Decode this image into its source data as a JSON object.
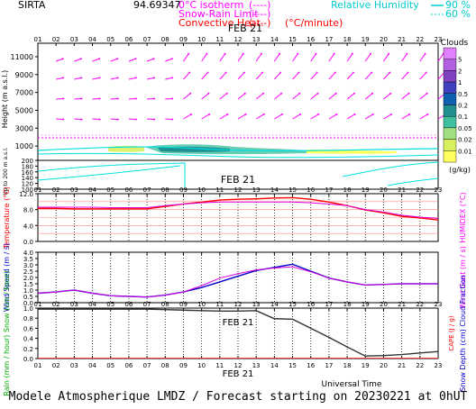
{
  "header": {
    "station": "SIRTA",
    "coords": "94.69347",
    "legend_items": [
      {
        "label": "0°C isotherm",
        "sample": "(----)",
        "color": "#ff00ff"
      },
      {
        "label": "Snow-Rain Limit",
        "sample": "(----)",
        "color": "#ff00ff"
      },
      {
        "label": "Convective Heat.",
        "sample": "(----)",
        "unit": "(°C/minute)",
        "color": "#ff0000"
      }
    ],
    "humidity": {
      "label": "Relative Humidity",
      "thresholds": [
        "90 %",
        "60 %"
      ],
      "color": "#00cccc"
    }
  },
  "date_label": "FEB 21",
  "hours": [
    "01",
    "02",
    "03",
    "04",
    "05",
    "06",
    "07",
    "08",
    "09",
    "10",
    "11",
    "12",
    "13",
    "14",
    "15",
    "16",
    "17",
    "18",
    "19",
    "20",
    "21",
    "22",
    "23"
  ],
  "clouds": {
    "title": "Clouds",
    "unit": "(g/kg)",
    "levels": [
      "0.01",
      "0.02",
      "0.05",
      "0.1",
      "0.2",
      "0.5",
      "1",
      "2",
      "5"
    ],
    "colors": [
      "#ffff60",
      "#d8f060",
      "#a0e080",
      "#40c0a0",
      "#1f8f8f",
      "#1060b0",
      "#4040c0",
      "#8040c0",
      "#b060e0",
      "#e080ff"
    ]
  },
  "panel1": {
    "ylabel": "Height  (m a.s.l.)",
    "ylabel2": "Up to 200 m a.s.l.",
    "upper_ticks": [
      "11000",
      "9000",
      "7000",
      "5000",
      "3000",
      "1000"
    ],
    "lower_ticks": [
      "200",
      "180",
      "160",
      "140",
      "120",
      "100"
    ]
  },
  "chart_data": [
    {
      "type": "line",
      "title": "",
      "xlabel": "Universal Time",
      "ylabel": "Temperature (°C)",
      "ylabel_right": "HUMIDEX (°C)",
      "x": [
        "01",
        "02",
        "03",
        "04",
        "05",
        "06",
        "07",
        "08",
        "09",
        "10",
        "11",
        "12",
        "13",
        "14",
        "15",
        "16",
        "17",
        "18",
        "19",
        "20",
        "21",
        "22",
        "23"
      ],
      "ylim": [
        0,
        12
      ],
      "yticks": [
        "12.0",
        "8.0",
        "4.0",
        "0.0"
      ],
      "series": [
        {
          "values": [
            8.3,
            8.3,
            8.2,
            8.2,
            8.2,
            8.2,
            8.2,
            8.8,
            9.4,
            9.9,
            10.4,
            10.6,
            10.7,
            10.9,
            11.0,
            10.6,
            9.9,
            9.0,
            7.9,
            7.2,
            6.3,
            5.9,
            5.4
          ],
          "color": "#ff0000"
        },
        {
          "values": [
            8.6,
            8.6,
            8.6,
            8.6,
            8.5,
            8.5,
            8.5,
            9.0,
            9.4,
            9.7,
            9.9,
            9.9,
            9.9,
            9.9,
            9.9,
            9.7,
            9.4,
            9.0,
            8.0,
            7.4,
            6.6,
            6.1,
            5.8
          ],
          "color": "#dd00dd"
        }
      ]
    },
    {
      "type": "line",
      "title": "",
      "ylabel": "Wind Speed (m / s)",
      "ylabel_right": "Wind Gust (m / s)",
      "x": [
        "01",
        "02",
        "03",
        "04",
        "05",
        "06",
        "07",
        "08",
        "09",
        "10",
        "11",
        "12",
        "13",
        "14",
        "15",
        "16",
        "17",
        "18",
        "19",
        "20",
        "21",
        "22",
        "23"
      ],
      "ylim": [
        0,
        4
      ],
      "yticks": [
        "4.0",
        "3.5",
        "3.0",
        "2.5",
        "2.0",
        "1.5",
        "1.0",
        "0.5",
        "0.0"
      ],
      "series": [
        {
          "values": [
            0.75,
            0.85,
            1.0,
            0.75,
            0.55,
            0.5,
            0.45,
            0.6,
            0.85,
            1.2,
            1.65,
            2.1,
            2.55,
            2.8,
            3.05,
            2.5,
            1.95,
            1.65,
            1.4,
            1.45,
            1.5,
            1.5,
            1.5
          ],
          "color": "#0000cc"
        },
        {
          "values": [
            0.75,
            0.85,
            1.0,
            0.75,
            0.55,
            0.5,
            0.45,
            0.6,
            0.85,
            1.35,
            1.95,
            2.3,
            2.6,
            2.75,
            2.85,
            2.45,
            1.95,
            1.65,
            1.4,
            1.45,
            1.5,
            1.5,
            1.5
          ],
          "color": "#dd00dd"
        }
      ]
    },
    {
      "type": "line",
      "title": "",
      "ylabel": "Rain (mm / hour) Snow (cm / hour)",
      "ylabel_right": "Snow Depth (cm) Cloud Fraction",
      "ylabel_right2": "CAPE (J / g)",
      "x": [
        "01",
        "02",
        "03",
        "04",
        "05",
        "06",
        "07",
        "08",
        "09",
        "10",
        "11",
        "12",
        "13",
        "14",
        "15",
        "16",
        "17",
        "18",
        "19",
        "20",
        "21",
        "22",
        "23"
      ],
      "ylim": [
        0,
        1.0
      ],
      "yticks": [
        "1.0",
        "0.8",
        "0.6",
        "0.4",
        "0.2",
        "0.0"
      ],
      "series": [
        {
          "values": [
            0.98,
            0.98,
            0.98,
            0.98,
            0.98,
            0.98,
            0.98,
            0.97,
            0.96,
            0.95,
            0.94,
            0.94,
            0.95,
            0.79,
            0.78,
            0.6,
            0.42,
            0.23,
            0.05,
            0.06,
            0.08,
            0.11,
            0.14
          ],
          "color": "#333333"
        },
        {
          "values": [
            0.01,
            0.01,
            0.01,
            0.01,
            0.01,
            0.01,
            0.01,
            0.01,
            0.01,
            0.01,
            0.01,
            0.01,
            0.01,
            0.01,
            0.01,
            0.01,
            0.01,
            0.01,
            0.01,
            0.01,
            0.01,
            0.01,
            0.01
          ],
          "color": "#ff4444"
        }
      ]
    }
  ],
  "footer": {
    "universal_time": "Universal Time",
    "caption": "Modele Atmospherique LMDZ / Forecast starting on 20230221 at 0hUT"
  },
  "colors": {
    "axis": "#000000",
    "magenta": "#ff00ff",
    "cyan": "#00e0e0",
    "red": "#ff0000",
    "blue": "#0000cc"
  }
}
